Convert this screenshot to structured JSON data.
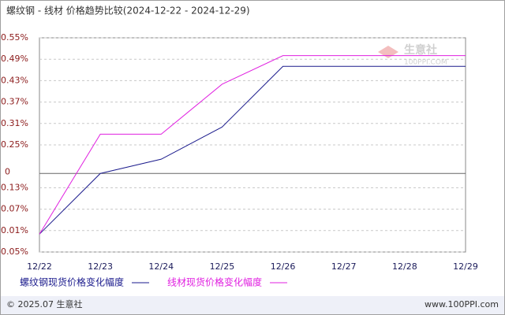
{
  "chart_data": {
    "type": "line",
    "title": "螺纹钢 - 线材 价格趋势比较(2024-12-22 - 2024-12-29)",
    "categories": [
      "12/22",
      "12/23",
      "12/24",
      "12/25",
      "12/26",
      "12/27",
      "12/28",
      "12/29"
    ],
    "series": [
      {
        "name": "螺纹钢现货价格变化幅度",
        "color": "#1a1a8c",
        "values": [
          0,
          0.17,
          0.21,
          0.3,
          0.47,
          0.47,
          0.47,
          0.47
        ]
      },
      {
        "name": "线材现货价格变化幅度",
        "color": "#e020e0",
        "values": [
          0,
          0.28,
          0.28,
          0.42,
          0.5,
          0.5,
          0.5,
          0.5
        ]
      }
    ],
    "ylim": [
      -0.05,
      0.55
    ],
    "yticks": [
      {
        "value": 0.55,
        "label": "0.55%"
      },
      {
        "value": 0.49,
        "label": "0.49%"
      },
      {
        "value": 0.43,
        "label": "0.43%"
      },
      {
        "value": 0.37,
        "label": "0.37%"
      },
      {
        "value": 0.31,
        "label": "0.31%"
      },
      {
        "value": 0.25,
        "label": "0.25%"
      },
      {
        "value": 0.13,
        "label": "0.13%"
      },
      {
        "value": 0.07,
        "label": "0.07%"
      },
      {
        "value": 0.01,
        "label": "0.01%"
      },
      {
        "value": -0.05,
        "label": "-0.05%"
      }
    ],
    "zero_line": {
      "value": 0.17,
      "label": "0"
    },
    "grid": true,
    "watermark": [
      "生意社",
      "100PPI.COM"
    ],
    "footer": {
      "left": "© 2025.07 生意社",
      "right": "www.100PPI.com"
    }
  }
}
